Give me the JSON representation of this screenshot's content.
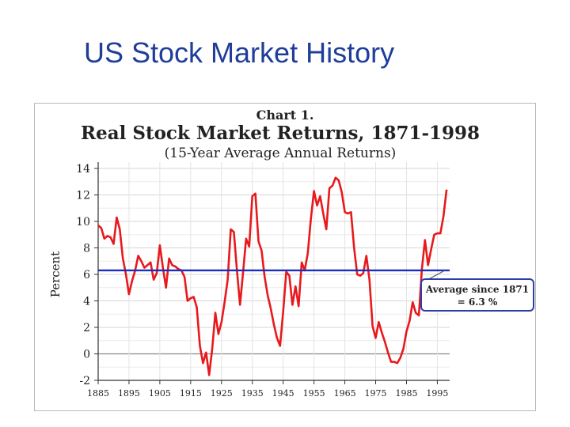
{
  "slide": {
    "title": "US Stock Market History"
  },
  "chart_data": {
    "type": "line",
    "chart_label": "Chart 1.",
    "title": "Real Stock Market Returns, 1871-1998",
    "subtitle": "(15-Year Average Annual Returns)",
    "xlabel": "",
    "ylabel": "Percent",
    "xlim": [
      1885,
      1999
    ],
    "ylim": [
      -2,
      14
    ],
    "grid": "horizontal",
    "x_ticks": [
      1885,
      1895,
      1905,
      1915,
      1925,
      1935,
      1945,
      1955,
      1965,
      1975,
      1985,
      1995
    ],
    "x_tick_labels": [
      "1885",
      "1895",
      "1905",
      "1915",
      "1925",
      "1935",
      "1945",
      "1955",
      "1965",
      "1975",
      "1985",
      "1995"
    ],
    "y_ticks": [
      -2,
      0,
      2,
      4,
      6,
      8,
      10,
      12,
      14
    ],
    "y_tick_labels": [
      "-2",
      "0",
      "2",
      "4",
      "6",
      "8",
      "10",
      "12",
      "14"
    ],
    "series": [
      {
        "color": "#e8191c",
        "x": [
          1885,
          1886,
          1887,
          1888,
          1889,
          1890,
          1891,
          1892,
          1893,
          1894,
          1895,
          1896,
          1897,
          1898,
          1899,
          1900,
          1901,
          1902,
          1903,
          1904,
          1905,
          1906,
          1907,
          1908,
          1909,
          1910,
          1911,
          1912,
          1913,
          1914,
          1915,
          1916,
          1917,
          1918,
          1919,
          1920,
          1921,
          1922,
          1923,
          1924,
          1925,
          1926,
          1927,
          1928,
          1929,
          1930,
          1931,
          1932,
          1933,
          1934,
          1935,
          1936,
          1937,
          1938,
          1939,
          1940,
          1941,
          1942,
          1943,
          1944,
          1945,
          1946,
          1947,
          1948,
          1949,
          1950,
          1951,
          1952,
          1953,
          1954,
          1955,
          1956,
          1957,
          1958,
          1959,
          1960,
          1961,
          1962,
          1963,
          1964,
          1965,
          1966,
          1967,
          1968,
          1969,
          1970,
          1971,
          1972,
          1973,
          1974,
          1975,
          1976,
          1977,
          1978,
          1979,
          1980,
          1981,
          1982,
          1983,
          1984,
          1985,
          1986,
          1987,
          1988,
          1989,
          1990,
          1991,
          1992,
          1993,
          1994,
          1995,
          1996,
          1997,
          1998
        ],
        "y": [
          9.7,
          9.5,
          8.7,
          8.9,
          8.8,
          8.3,
          10.3,
          9.4,
          7.2,
          6.0,
          4.5,
          5.5,
          6.3,
          7.4,
          7.0,
          6.5,
          6.7,
          6.9,
          5.6,
          6.1,
          8.2,
          6.5,
          5.0,
          7.2,
          6.7,
          6.6,
          6.4,
          6.3,
          5.8,
          4.0,
          4.2,
          4.3,
          3.5,
          0.6,
          -0.7,
          0.1,
          -1.6,
          0.4,
          3.1,
          1.5,
          2.4,
          3.9,
          5.6,
          9.4,
          9.2,
          6.3,
          3.7,
          6.2,
          8.7,
          8.1,
          11.9,
          12.1,
          8.5,
          7.8,
          5.8,
          4.4,
          3.4,
          2.2,
          1.2,
          0.6,
          3.2,
          6.2,
          5.9,
          3.7,
          5.1,
          3.6,
          6.9,
          6.3,
          7.6,
          10.2,
          12.3,
          11.2,
          11.9,
          10.6,
          9.4,
          12.5,
          12.7,
          13.3,
          13.1,
          12.2,
          10.7,
          10.6,
          10.7,
          8.0,
          6.0,
          5.9,
          6.1,
          7.4,
          5.6,
          2.1,
          1.2,
          2.4,
          1.6,
          0.9,
          0.1,
          -0.6,
          -0.6,
          -0.7,
          -0.3,
          0.4,
          1.7,
          2.5,
          3.9,
          3.1,
          2.9,
          6.4,
          8.6,
          6.7,
          7.9,
          9.0,
          9.1,
          9.1,
          10.4,
          12.4
        ]
      }
    ],
    "reference_line": {
      "value": 6.3,
      "color": "#1a2fbf"
    },
    "annotation": {
      "line1": "Average since 1871",
      "line2": "= 6.3 %",
      "box_color": "#2a3fa8"
    }
  }
}
